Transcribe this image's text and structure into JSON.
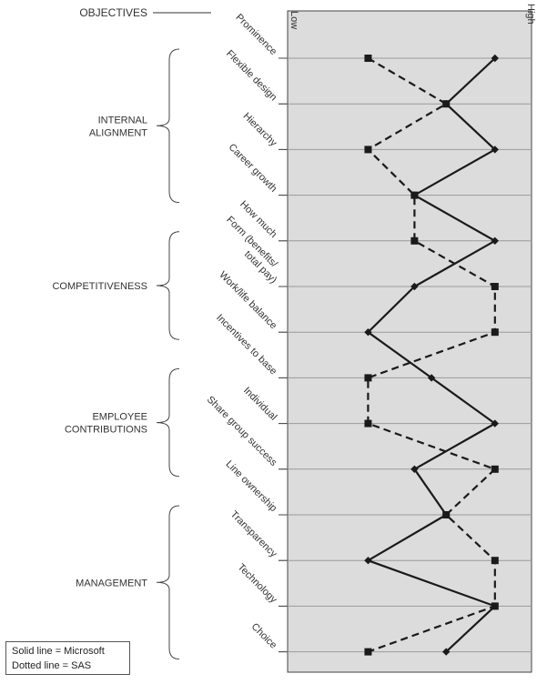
{
  "chart_data": {
    "type": "line",
    "x_axis": {
      "min_label": "Low",
      "max_label": "High",
      "range": [
        0,
        1
      ]
    },
    "objectives_label": "OBJECTIVES",
    "categories": [
      "Prominence",
      "Flexible design",
      "Hierarchy",
      "Career growth",
      "How much",
      "Form (benefits/ total pay)",
      "Work/life balance",
      "Incentives to base",
      "Individual",
      "Share group success",
      "Line ownership",
      "Transparency",
      "Technology",
      "Choice"
    ],
    "groups": [
      {
        "label": [
          "INTERNAL",
          "ALIGNMENT"
        ],
        "items": [
          0,
          3
        ]
      },
      {
        "label": [
          "COMPETITIVENESS"
        ],
        "items": [
          4,
          6
        ]
      },
      {
        "label": [
          "EMPLOYEE",
          "CONTRIBUTIONS"
        ],
        "items": [
          7,
          9
        ]
      },
      {
        "label": [
          "MANAGEMENT"
        ],
        "items": [
          10,
          13
        ]
      }
    ],
    "series": [
      {
        "name": "Microsoft",
        "style": "solid",
        "marker": "diamond",
        "values": [
          0.85,
          0.65,
          0.85,
          0.52,
          0.85,
          0.52,
          0.33,
          0.59,
          0.85,
          0.52,
          0.65,
          0.33,
          0.85,
          0.65
        ]
      },
      {
        "name": "SAS",
        "style": "dashed",
        "marker": "square",
        "values": [
          0.33,
          0.65,
          0.33,
          0.52,
          0.52,
          0.85,
          0.85,
          0.33,
          0.33,
          0.85,
          0.65,
          0.85,
          0.85,
          0.33
        ]
      }
    ],
    "legend": {
      "position": "bottom-left",
      "lines": [
        "Solid line = Microsoft",
        "Dotted line = SAS"
      ]
    },
    "colors": {
      "panel": "#dcdcdc",
      "line": "#222222",
      "grid": "#999999"
    }
  }
}
